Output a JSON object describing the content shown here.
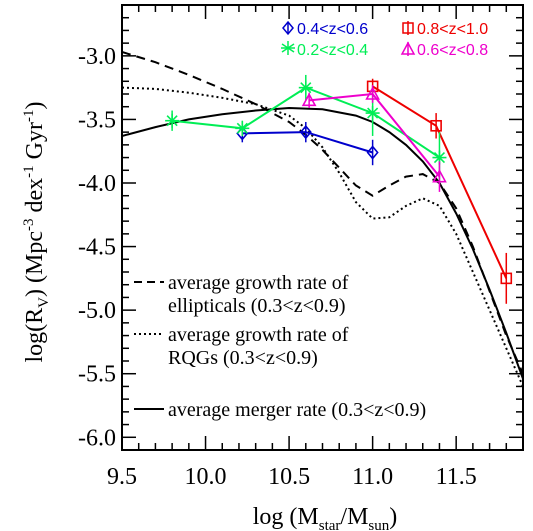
{
  "chart_data": {
    "type": "line",
    "xlabel": {
      "base": "log (M",
      "sub1": "star",
      "mid": "/M",
      "sub2": "sun",
      "end": ")"
    },
    "ylabel": {
      "base": "log(R",
      "sub": "V",
      "mid": ") (Mpc",
      "sup1": "-3",
      "mid2": " dex",
      "sup2": "-1",
      "mid3": " Gyr",
      "sup3": "-1",
      "end": ")"
    },
    "xlim": [
      9.5,
      11.9
    ],
    "ylim": [
      -6.1,
      -2.6
    ],
    "xticks": [
      "9.5",
      "10.0",
      "10.5",
      "11.0",
      "11.5"
    ],
    "xtick_values": [
      9.5,
      10.0,
      10.5,
      11.0,
      11.5
    ],
    "yticks": [
      "-3.0",
      "-3.5",
      "-4.0",
      "-4.5",
      "-5.0",
      "-5.5",
      "-6.0"
    ],
    "ytick_values": [
      -3.0,
      -3.5,
      -4.0,
      -4.5,
      -5.0,
      -5.5,
      -6.0
    ],
    "grid": false,
    "series": [
      {
        "name": "0.4<z<0.6",
        "color": "#0000cc",
        "marker": "diamond",
        "x": [
          10.22,
          10.6,
          11.0
        ],
        "y": [
          -3.61,
          -3.6,
          -3.76
        ],
        "err": [
          0.07,
          0.08,
          0.1
        ]
      },
      {
        "name": "0.8<z<1.0",
        "color": "#ee0000",
        "marker": "square",
        "x": [
          11.0,
          11.38,
          11.8
        ],
        "y": [
          -3.24,
          -3.55,
          -4.75
        ],
        "err": [
          0.06,
          0.1,
          0.2
        ]
      },
      {
        "name": "0.2<z<0.4",
        "color": "#00ee55",
        "marker": "asterisk",
        "x": [
          9.8,
          10.22,
          10.6,
          11.0,
          11.4
        ],
        "y": [
          -3.51,
          -3.57,
          -3.25,
          -3.45,
          -3.8
        ],
        "err": [
          0.08,
          0.06,
          0.1,
          0.18,
          0.2
        ]
      },
      {
        "name": "0.6<z<0.8",
        "color": "#ee00cc",
        "marker": "triangle",
        "x": [
          10.62,
          11.0,
          11.4
        ],
        "y": [
          -3.35,
          -3.3,
          -3.95
        ],
        "err": [
          0.06,
          0.07,
          0.12
        ]
      }
    ],
    "curves": [
      {
        "name": "average growth rate of ellipticals (0.3<z<0.9)",
        "style": "dashed",
        "x": [
          9.5,
          9.7,
          9.9,
          10.1,
          10.3,
          10.5,
          10.6,
          10.7,
          10.8,
          10.9,
          11.0,
          11.1,
          11.2,
          11.3,
          11.4,
          11.5,
          11.6,
          11.7,
          11.8,
          11.9
        ],
        "y": [
          -2.97,
          -3.05,
          -3.15,
          -3.26,
          -3.38,
          -3.52,
          -3.62,
          -3.74,
          -3.88,
          -4.02,
          -4.1,
          -4.02,
          -3.95,
          -3.93,
          -4.0,
          -4.2,
          -4.5,
          -4.85,
          -5.2,
          -5.5
        ]
      },
      {
        "name": "average growth rate of RQGs (0.3<z<0.9)",
        "style": "dotted",
        "x": [
          9.5,
          9.7,
          9.9,
          10.1,
          10.3,
          10.5,
          10.6,
          10.7,
          10.8,
          10.9,
          11.0,
          11.1,
          11.2,
          11.3,
          11.4,
          11.5,
          11.6,
          11.7,
          11.8,
          11.9
        ],
        "y": [
          -3.25,
          -3.26,
          -3.29,
          -3.33,
          -3.38,
          -3.47,
          -3.57,
          -3.72,
          -3.92,
          -4.15,
          -4.28,
          -4.27,
          -4.18,
          -4.12,
          -4.18,
          -4.4,
          -4.7,
          -5.0,
          -5.3,
          -5.6
        ]
      },
      {
        "name": "average merger rate (0.3<z<0.9)",
        "style": "solid",
        "x": [
          9.5,
          9.7,
          9.9,
          10.1,
          10.3,
          10.5,
          10.7,
          10.9,
          11.0,
          11.1,
          11.2,
          11.3,
          11.4,
          11.5,
          11.6,
          11.7,
          11.8,
          11.9
        ],
        "y": [
          -3.63,
          -3.56,
          -3.5,
          -3.46,
          -3.43,
          -3.41,
          -3.42,
          -3.47,
          -3.52,
          -3.6,
          -3.7,
          -3.83,
          -4.0,
          -4.24,
          -4.52,
          -4.84,
          -5.18,
          -5.54
        ]
      }
    ],
    "legend_bottom": {
      "dashed": [
        "average growth rate of",
        "ellipticals (0.3<z<0.9)"
      ],
      "dotted": [
        "average growth rate of",
        "RQGs (0.3<z<0.9)"
      ],
      "solid": [
        "average merger rate (0.3<z<0.9)"
      ]
    },
    "legend_top_placement": "top-right"
  }
}
